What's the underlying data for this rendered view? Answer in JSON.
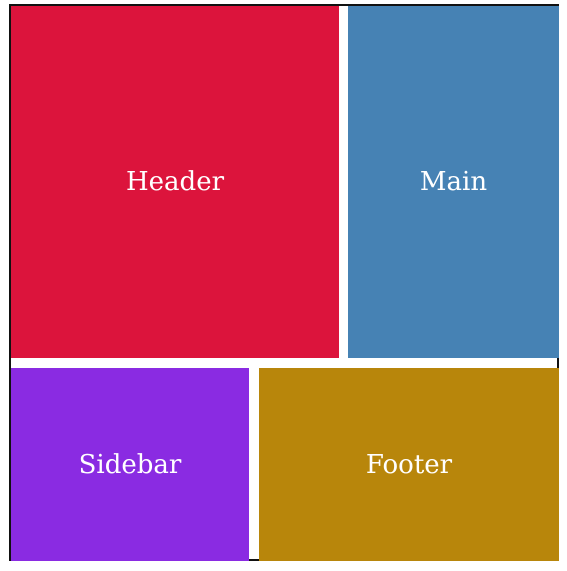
{
  "blocks": {
    "header": {
      "label": "Header",
      "color": "#DC143C"
    },
    "main": {
      "label": "Main",
      "color": "#4682B4"
    },
    "sidebar": {
      "label": "Sidebar",
      "color": "#8A2BE2"
    },
    "footer": {
      "label": "Footer",
      "color": "#B8860B"
    }
  }
}
